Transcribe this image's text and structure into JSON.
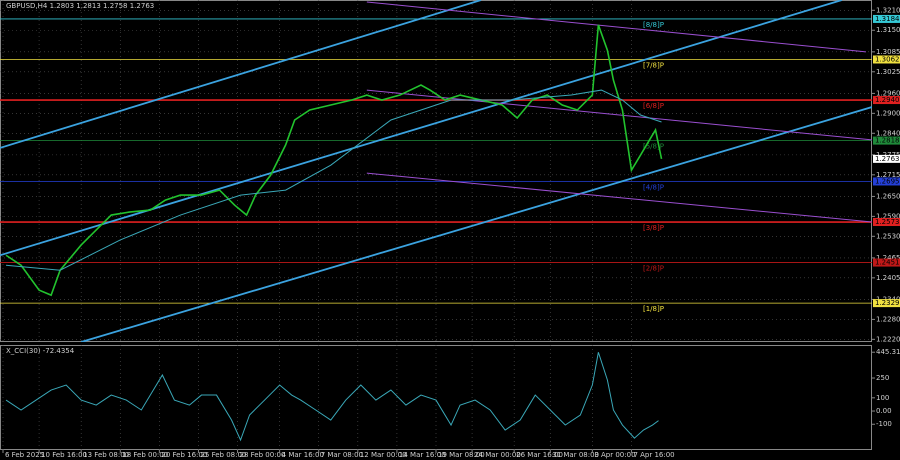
{
  "chart_data": [
    {
      "type": "line",
      "title": "GBPUSD,H4 1.2803 1.2813 1.2758 1.2763",
      "xlim": [
        0,
        290
      ],
      "ylim": [
        1.2212,
        1.3241
      ],
      "xticks": [
        {
          "value": 1,
          "label": "6 Feb 2025"
        },
        {
          "value": 13,
          "label": "10 Feb 16:00"
        },
        {
          "value": 27,
          "label": "13 Feb 08:00"
        },
        {
          "value": 40,
          "label": "18 Feb 00:00"
        },
        {
          "value": 53,
          "label": "20 Feb 16:00"
        },
        {
          "value": 66,
          "label": "25 Feb 08:00"
        },
        {
          "value": 79,
          "label": "28 Feb 00:00"
        },
        {
          "value": 93,
          "label": "4 Mar 16:00"
        },
        {
          "value": 106,
          "label": "7 Mar 08:00"
        },
        {
          "value": 119,
          "label": "12 Mar 00:00"
        },
        {
          "value": 132,
          "label": "14 Mar 16:00"
        },
        {
          "value": 145,
          "label": "19 Mar 08:00"
        },
        {
          "value": 157,
          "label": "24 Mar 00:00"
        },
        {
          "value": 171,
          "label": "26 Mar 16:00"
        },
        {
          "value": 183,
          "label": "31 Mar 08:00"
        },
        {
          "value": 197,
          "label": "3 Apr 00:00"
        },
        {
          "value": 210,
          "label": "7 Apr 16:00"
        }
      ],
      "yticks": [
        {
          "value": 1.321,
          "label": "1.3210"
        },
        {
          "value": 1.315,
          "label": "1.3150"
        },
        {
          "value": 1.3085,
          "label": "1.3085"
        },
        {
          "value": 1.3025,
          "label": "1.3025"
        },
        {
          "value": 1.296,
          "label": "1.2960"
        },
        {
          "value": 1.29,
          "label": "1.2900"
        },
        {
          "value": 1.284,
          "label": "1.2840"
        },
        {
          "value": 1.2775,
          "label": "1.2775"
        },
        {
          "value": 1.2715,
          "label": "1.2715"
        },
        {
          "value": 1.265,
          "label": "1.2650"
        },
        {
          "value": 1.259,
          "label": "1.2590"
        },
        {
          "value": 1.253,
          "label": "1.2530"
        },
        {
          "value": 1.2465,
          "label": "1.2465"
        },
        {
          "value": 1.2405,
          "label": "1.2405"
        },
        {
          "value": 1.234,
          "label": "1.2340"
        },
        {
          "value": 1.228,
          "label": "1.2280"
        },
        {
          "value": 1.222,
          "label": "1.2220"
        }
      ],
      "grid": true,
      "series": [
        {
          "name": "GBPUSD",
          "color": "#22c32e",
          "x": [
            2,
            7,
            13,
            17,
            20,
            27,
            32,
            37,
            43,
            50,
            55,
            60,
            67,
            73,
            78,
            82,
            85,
            90,
            95,
            98,
            103,
            110,
            117,
            122,
            127,
            133,
            140,
            143,
            148,
            153,
            160,
            167,
            172,
            177,
            182,
            187,
            192,
            197,
            199,
            202,
            204,
            207,
            210,
            213,
            216,
            218,
            220
          ],
          "values": [
            1.2473,
            1.2443,
            1.2368,
            1.2353,
            1.2428,
            1.2504,
            1.2549,
            1.2594,
            1.2603,
            1.2609,
            1.2639,
            1.2654,
            1.2654,
            1.2669,
            1.2624,
            1.2594,
            1.2654,
            1.2714,
            1.2805,
            1.288,
            1.291,
            1.2925,
            1.294,
            1.2955,
            1.294,
            1.2955,
            1.2985,
            1.297,
            1.294,
            1.2955,
            1.294,
            1.2925,
            1.2886,
            1.294,
            1.2955,
            1.2925,
            1.291,
            1.2955,
            1.3166,
            1.309,
            1.3,
            1.291,
            1.2729,
            1.2774,
            1.282,
            1.285,
            1.2763
          ]
        },
        {
          "name": "MA",
          "color": "#3aa8b8",
          "x": [
            2,
            20,
            40,
            60,
            80,
            95,
            110,
            130,
            150,
            170,
            190,
            200,
            207,
            213,
            220
          ],
          "values": [
            1.2443,
            1.2428,
            1.2519,
            1.2594,
            1.2654,
            1.2669,
            1.2744,
            1.288,
            1.294,
            1.294,
            1.2955,
            1.297,
            1.294,
            1.2895,
            1.2874
          ]
        }
      ],
      "current": {
        "value": 1.2763,
        "label": "1.2763"
      },
      "levels": [
        {
          "name": "[8/8]P",
          "value": 1.3184,
          "label": "1.3184",
          "color": "#35c9d6"
        },
        {
          "name": "[7/8]P",
          "value": 1.3062,
          "label": "1.3062",
          "color": "#f0e040"
        },
        {
          "name": "[6/8]P",
          "value": 1.294,
          "label": "1.2940",
          "color": "#e02020"
        },
        {
          "name": "[5/8]P",
          "value": 1.2818,
          "label": "1.2818",
          "color": "#1f8a3a"
        },
        {
          "name": "[4/8]P",
          "value": 1.2695,
          "label": "1.2695",
          "color": "#2440d8"
        },
        {
          "name": "[3/8]P",
          "value": 1.2573,
          "label": "1.2573",
          "color": "#e02020"
        },
        {
          "name": "[2/8]P",
          "value": 1.2451,
          "label": "1.2451",
          "color": "#c01818"
        },
        {
          "name": "[1/8]P",
          "value": 1.2329,
          "label": "1.2329",
          "color": "#f0e040"
        }
      ],
      "trend_lines": [
        {
          "color": "#3ba3e0",
          "x": [
            0,
            160
          ],
          "values": [
            1.2796,
            1.3241
          ]
        },
        {
          "color": "#3ba3e0",
          "x": [
            0,
            280
          ],
          "values": [
            1.2473,
            1.3241
          ]
        },
        {
          "color": "#3ba3e0",
          "x": [
            27,
            290
          ],
          "values": [
            1.2212,
            1.2919
          ]
        },
        {
          "color": "#9a4fd0",
          "x": [
            122,
            288
          ],
          "values": [
            1.3235,
            1.3085
          ]
        },
        {
          "color": "#9a4fd0",
          "x": [
            122,
            290
          ],
          "values": [
            1.297,
            1.282
          ]
        },
        {
          "color": "#9a4fd0",
          "x": [
            122,
            290
          ],
          "values": [
            1.272,
            1.2573
          ]
        }
      ]
    },
    {
      "type": "line",
      "title": "X_CCI(30) -72.4354",
      "xlim": [
        0,
        290
      ],
      "ylim": [
        -295,
        500
      ],
      "yticks": [
        {
          "value": 445.3108,
          "label": "445.3108"
        },
        250,
        100,
        {
          "value": 0,
          "label": "0.00"
        },
        -100
      ],
      "series": [
        {
          "name": "CCI",
          "color": "#3aa8b8",
          "x": [
            2,
            7,
            12,
            17,
            22,
            27,
            32,
            37,
            42,
            47,
            52,
            54,
            58,
            63,
            67,
            72,
            77,
            80,
            83,
            88,
            93,
            97,
            100,
            105,
            110,
            115,
            120,
            125,
            130,
            135,
            140,
            145,
            150,
            153,
            158,
            163,
            168,
            173,
            178,
            183,
            188,
            193,
            197,
            199,
            202,
            204,
            207,
            211,
            214,
            217,
            219
          ],
          "values": [
            83,
            8,
            83,
            159,
            197,
            83,
            45,
            121,
            83,
            8,
            197,
            273,
            83,
            45,
            121,
            121,
            -68,
            -220,
            -30,
            83,
            197,
            121,
            83,
            8,
            -68,
            83,
            197,
            83,
            159,
            45,
            121,
            83,
            -106,
            45,
            83,
            8,
            -144,
            -68,
            121,
            8,
            -106,
            -30,
            197,
            445,
            235,
            8,
            -106,
            -205,
            -144,
            -106,
            -72.4354
          ]
        }
      ]
    }
  ]
}
